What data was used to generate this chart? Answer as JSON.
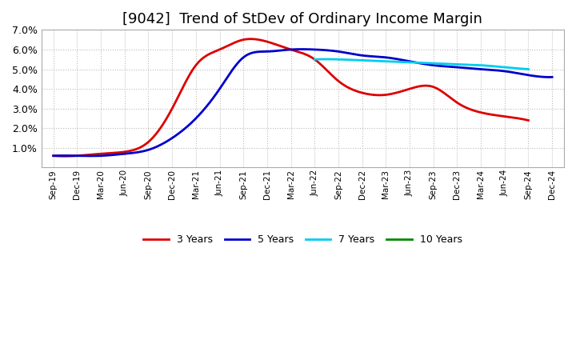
{
  "title": "[9042]  Trend of StDev of Ordinary Income Margin",
  "ylim": [
    0.0,
    0.07
  ],
  "yticks": [
    0.01,
    0.02,
    0.03,
    0.04,
    0.05,
    0.06,
    0.07
  ],
  "ytick_labels": [
    "1.0%",
    "2.0%",
    "3.0%",
    "4.0%",
    "5.0%",
    "6.0%",
    "7.0%"
  ],
  "background_color": "#ffffff",
  "plot_bg_color": "#ffffff",
  "grid_color": "#bbbbbb",
  "title_fontsize": 13,
  "x_labels": [
    "Sep-19",
    "Dec-19",
    "Mar-20",
    "Jun-20",
    "Sep-20",
    "Dec-20",
    "Mar-21",
    "Jun-21",
    "Sep-21",
    "Dec-21",
    "Mar-22",
    "Jun-22",
    "Sep-22",
    "Dec-22",
    "Mar-23",
    "Jun-23",
    "Sep-23",
    "Dec-23",
    "Mar-24",
    "Jun-24",
    "Sep-24",
    "Dec-24"
  ],
  "series": {
    "3 Years": {
      "color": "#dd0000",
      "lw": 2.0,
      "values": [
        0.006,
        0.006,
        0.007,
        0.008,
        0.013,
        0.03,
        0.052,
        0.06,
        0.065,
        0.064,
        0.06,
        0.055,
        0.044,
        0.038,
        0.037,
        0.04,
        0.041,
        0.033,
        0.028,
        0.026,
        0.024,
        null
      ]
    },
    "5 Years": {
      "color": "#0000cc",
      "lw": 2.0,
      "values": [
        0.006,
        0.006,
        0.006,
        0.007,
        0.009,
        0.015,
        0.025,
        0.04,
        0.056,
        0.059,
        0.06,
        0.06,
        0.059,
        0.057,
        0.056,
        0.054,
        0.052,
        0.051,
        0.05,
        0.049,
        0.047,
        0.046
      ]
    },
    "7 Years": {
      "color": "#00ccee",
      "lw": 2.0,
      "values": [
        null,
        null,
        null,
        null,
        null,
        null,
        null,
        null,
        null,
        null,
        null,
        0.055,
        0.055,
        0.0545,
        0.054,
        0.0535,
        0.053,
        0.0525,
        0.052,
        0.051,
        0.05,
        null
      ]
    },
    "10 Years": {
      "color": "#008800",
      "lw": 2.0,
      "values": [
        null,
        null,
        null,
        null,
        null,
        null,
        null,
        null,
        null,
        null,
        null,
        null,
        null,
        null,
        null,
        null,
        null,
        null,
        null,
        null,
        null,
        null
      ]
    }
  }
}
